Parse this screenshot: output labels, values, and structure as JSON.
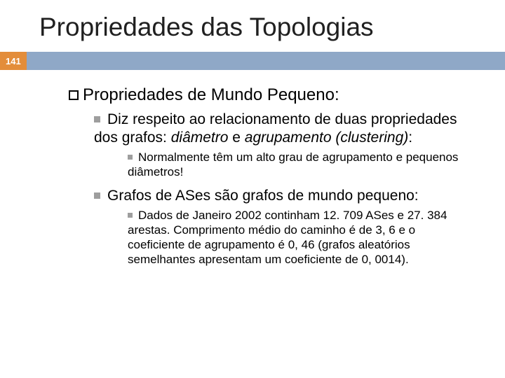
{
  "slide": {
    "title": "Propriedades das Topologias",
    "page_number": "141"
  },
  "content": {
    "level1_prefix": "Propriedades",
    "level1_rest": " de Mundo Pequeno:",
    "bullet2a_prefix": "Diz",
    "bullet2a_rest": " respeito ao relacionamento de duas propriedades dos grafos: ",
    "bullet2a_italic1": "diâmetro",
    "bullet2a_mid": " e ",
    "bullet2a_italic2": "agrupamento (clustering)",
    "bullet2a_tail": ":",
    "bullet3a": "Normalmente têm um alto grau de agrupamento e pequenos diâmetros!",
    "bullet2b_prefix": "Grafos",
    "bullet2b_rest": " de ASes são grafos de mundo pequeno:",
    "bullet3b": "Dados de Janeiro 2002 continham 12. 709 ASes e 27. 384 arestas. Comprimento médio do caminho é de 3, 6 e o coeficiente de agrupamento é 0, 46 (grafos aleatórios semelhantes apresentam um coeficiente de 0, 0014)."
  },
  "style": {
    "title_color": "#202020",
    "pagebar_color": "#8fa8c7",
    "pagenum_bg": "#e38d3a",
    "pagenum_fg": "#ffffff",
    "bullet_color": "#9e9e9e",
    "title_fontsize": 37,
    "level1_fontsize": 24,
    "level2_fontsize": 21,
    "level3_fontsize": 17,
    "background": "#ffffff"
  }
}
